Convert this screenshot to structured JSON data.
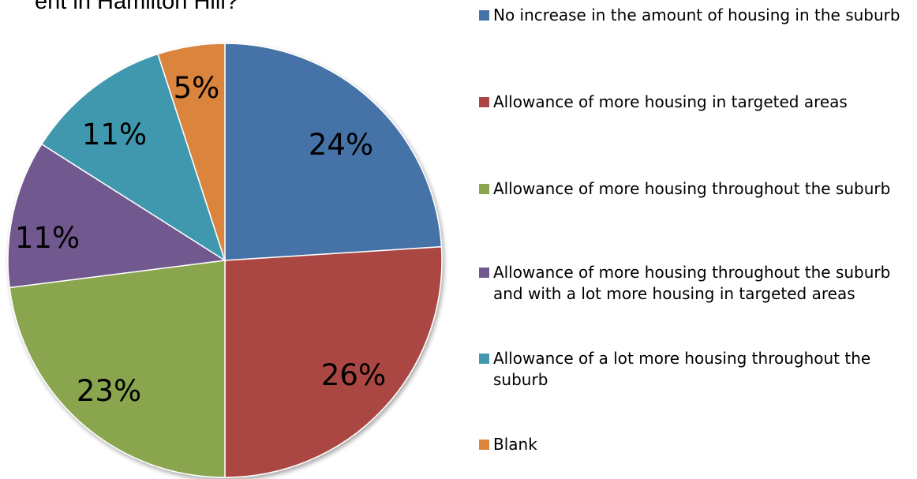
{
  "chart_data": {
    "type": "pie",
    "title": "ent in Hamilton Hill?",
    "categories": [
      "No increase in the amount of housing in the suburb",
      "Allowance of more housing in targeted areas",
      "Allowance of more housing throughout the suburb",
      "Allowance of more housing throughout the suburb and with a lot more housing in targeted areas",
      "Allowance of a lot more housing throughout the suburb",
      "Blank"
    ],
    "values": [
      24,
      26,
      23,
      11,
      11,
      5
    ],
    "labels": [
      "24%",
      "26%",
      "23%",
      "11%",
      "11%",
      "5%"
    ],
    "colors": [
      "#4572a7",
      "#aa4643",
      "#89a54e",
      "#71588f",
      "#4198af",
      "#db843d"
    ],
    "legend_position": "right"
  }
}
